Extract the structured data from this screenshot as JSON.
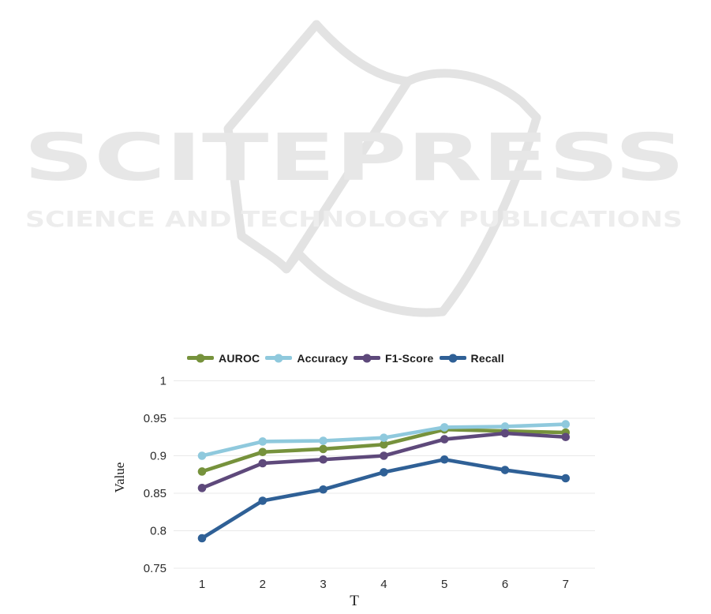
{
  "watermark": {
    "brand": "SCITEPRESS",
    "tagline": "SCIENCE AND TECHNOLOGY PUBLICATIONS"
  },
  "chart_data": {
    "type": "line",
    "title": "",
    "xlabel": "T",
    "ylabel": "Value",
    "x": [
      1,
      2,
      3,
      4,
      5,
      6,
      7
    ],
    "ylim": [
      0.75,
      1.0
    ],
    "ytick_values": [
      0.75,
      0.8,
      0.85,
      0.9,
      0.95,
      1.0
    ],
    "ytick_labels": [
      "0.75",
      "0.8",
      "0.85",
      "0.9",
      "0.95",
      "1"
    ],
    "grid": "horizontal",
    "gridline_color": "#e9e9e9",
    "legend_position": "top",
    "marker": "circle",
    "series": [
      {
        "name": "AUROC",
        "color": "#76923C",
        "values": [
          0.879,
          0.905,
          0.909,
          0.915,
          0.935,
          0.933,
          0.931
        ]
      },
      {
        "name": "Accuracy",
        "color": "#8FC9DD",
        "values": [
          0.9,
          0.919,
          0.92,
          0.924,
          0.938,
          0.939,
          0.942
        ]
      },
      {
        "name": "F1-Score",
        "color": "#5E497B",
        "values": [
          0.857,
          0.89,
          0.895,
          0.9,
          0.922,
          0.93,
          0.925
        ]
      },
      {
        "name": "Recall",
        "color": "#2F6096",
        "values": [
          0.79,
          0.84,
          0.855,
          0.878,
          0.895,
          0.881,
          0.87
        ]
      }
    ]
  }
}
